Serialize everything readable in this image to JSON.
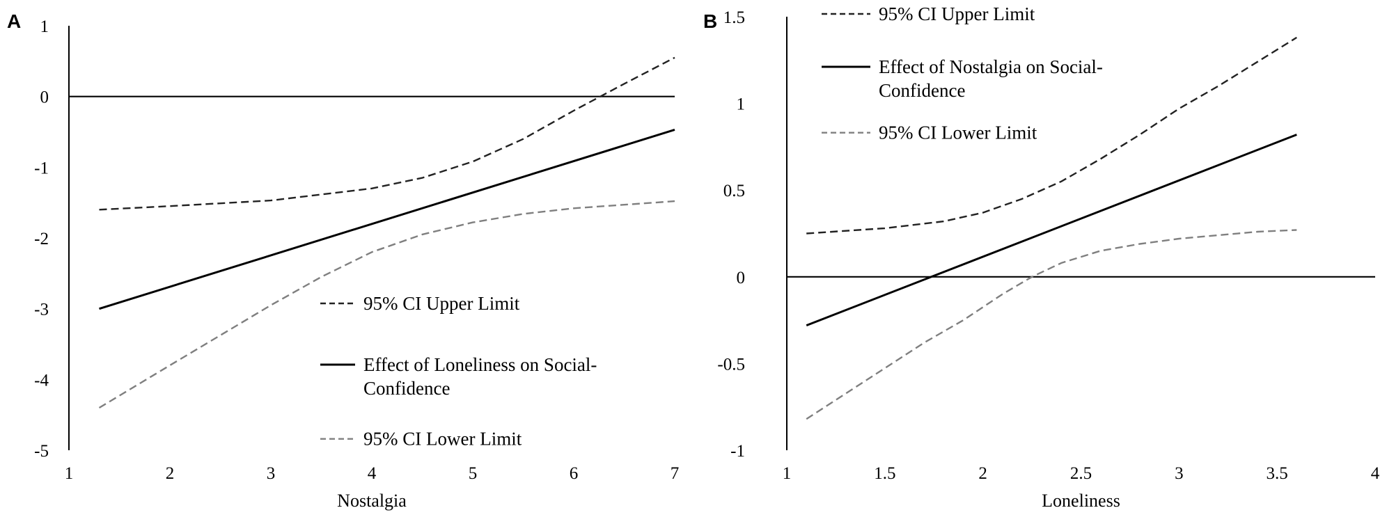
{
  "chart_data": [
    {
      "type": "line",
      "panel_label": "A",
      "xlabel": "Nostalgia",
      "ylabel": "",
      "xlim": [
        1,
        7
      ],
      "ylim": [
        -5,
        1
      ],
      "xticks": [
        "1",
        "2",
        "3",
        "4",
        "5",
        "6",
        "7"
      ],
      "yticks": [
        "1",
        "0",
        "-1",
        "-2",
        "-3",
        "-4",
        "-5"
      ],
      "reference_line": 0,
      "colors": {
        "upper": "#222222",
        "effect": "#000000",
        "lower": "#7f7f7f",
        "zero": "#000000"
      },
      "series": [
        {
          "key": "upper",
          "name": "95% CI Upper Limit",
          "style": "dashed",
          "x": [
            1.3,
            2.0,
            3.0,
            4.0,
            4.5,
            5.0,
            5.5,
            6.0,
            6.5,
            7.0
          ],
          "y": [
            -1.6,
            -1.55,
            -1.47,
            -1.3,
            -1.15,
            -0.92,
            -0.6,
            -0.2,
            0.18,
            0.55
          ]
        },
        {
          "key": "effect",
          "name": "Effect of Loneliness on Social-Confidence",
          "legend_lines": [
            "Effect of Loneliness on Social-",
            "Confidence"
          ],
          "style": "solid",
          "x": [
            1.3,
            7.0
          ],
          "y": [
            -3.0,
            -0.47
          ]
        },
        {
          "key": "lower",
          "name": "95% CI Lower Limit",
          "style": "dashed",
          "x": [
            1.3,
            2.0,
            3.0,
            3.5,
            4.0,
            4.5,
            5.0,
            5.5,
            6.0,
            6.5,
            7.0
          ],
          "y": [
            -4.4,
            -3.8,
            -2.95,
            -2.55,
            -2.2,
            -1.95,
            -1.78,
            -1.66,
            -1.58,
            -1.53,
            -1.48
          ]
        }
      ],
      "legend_order": [
        "upper",
        "effect",
        "lower"
      ],
      "legend_position": "lower-right"
    },
    {
      "type": "line",
      "panel_label": "B",
      "xlabel": "Loneliness",
      "ylabel": "",
      "xlim": [
        1,
        4
      ],
      "ylim": [
        -1,
        1.5
      ],
      "xticks": [
        "1",
        "1.5",
        "2",
        "2.5",
        "3",
        "3.5",
        "4"
      ],
      "yticks": [
        "1.5",
        "1",
        "0.5",
        "0",
        "-0.5",
        "-1"
      ],
      "reference_line": 0,
      "colors": {
        "upper": "#222222",
        "effect": "#000000",
        "lower": "#7f7f7f",
        "zero": "#000000"
      },
      "series": [
        {
          "key": "upper",
          "name": "95% CI Upper Limit",
          "style": "dashed",
          "x": [
            1.1,
            1.5,
            1.8,
            2.0,
            2.2,
            2.4,
            2.6,
            2.8,
            3.0,
            3.2,
            3.4,
            3.6
          ],
          "y": [
            0.25,
            0.28,
            0.32,
            0.37,
            0.45,
            0.55,
            0.68,
            0.82,
            0.97,
            1.1,
            1.24,
            1.38
          ]
        },
        {
          "key": "effect",
          "name": "Effect of Nostalgia on Social-Confidence",
          "legend_lines": [
            "Effect of Nostalgia on Social-",
            "Confidence"
          ],
          "style": "solid",
          "x": [
            1.1,
            3.6
          ],
          "y": [
            -0.28,
            0.82
          ]
        },
        {
          "key": "lower",
          "name": "95% CI Lower Limit",
          "style": "dashed",
          "x": [
            1.1,
            1.4,
            1.7,
            1.9,
            2.1,
            2.25,
            2.4,
            2.6,
            2.8,
            3.0,
            3.2,
            3.4,
            3.6
          ],
          "y": [
            -0.82,
            -0.6,
            -0.38,
            -0.25,
            -0.1,
            0.0,
            0.08,
            0.15,
            0.19,
            0.22,
            0.24,
            0.26,
            0.27
          ]
        }
      ],
      "legend_order": [
        "upper",
        "effect",
        "lower"
      ],
      "legend_position": "top-left"
    }
  ]
}
